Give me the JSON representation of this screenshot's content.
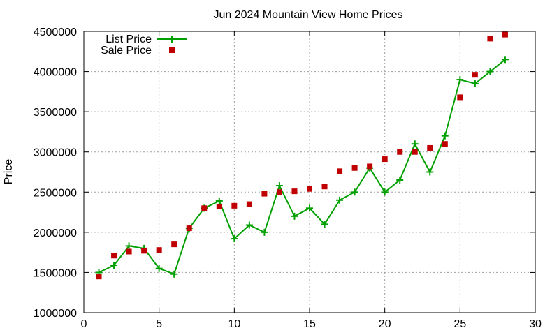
{
  "chart_data": {
    "type": "line",
    "title": "Jun 2024 Mountain View Home Prices",
    "xlabel": "",
    "ylabel": "Price",
    "xlim": [
      0,
      30
    ],
    "ylim": [
      1000000,
      4500000
    ],
    "x_ticks": [
      "0",
      "5",
      "10",
      "15",
      "20",
      "25",
      "30"
    ],
    "y_ticks": [
      "1000000",
      "1500000",
      "2000000",
      "2500000",
      "3000000",
      "3500000",
      "4000000",
      "4500000"
    ],
    "grid": true,
    "legend_position": "top-left",
    "series": [
      {
        "name": "List Price",
        "kind": "line-with-plus-markers",
        "color": "#00a000",
        "points": [
          [
            1,
            1500000
          ],
          [
            2,
            1590000
          ],
          [
            3,
            1830000
          ],
          [
            4,
            1800000
          ],
          [
            5,
            1550000
          ],
          [
            6,
            1480000
          ],
          [
            7,
            2050000
          ],
          [
            8,
            2300000
          ],
          [
            9,
            2390000
          ],
          [
            10,
            1920000
          ],
          [
            11,
            2090000
          ],
          [
            12,
            2000000
          ],
          [
            13,
            2580000
          ],
          [
            14,
            2200000
          ],
          [
            15,
            2300000
          ],
          [
            16,
            2100000
          ],
          [
            17,
            2400000
          ],
          [
            18,
            2500000
          ],
          [
            19,
            2800000
          ],
          [
            20,
            2500000
          ],
          [
            21,
            2650000
          ],
          [
            22,
            3100000
          ],
          [
            23,
            2750000
          ],
          [
            24,
            3200000
          ],
          [
            25,
            3900000
          ],
          [
            26,
            3850000
          ],
          [
            27,
            4000000
          ],
          [
            28,
            4150000
          ]
        ]
      },
      {
        "name": "Sale Price",
        "kind": "square-markers",
        "color": "#c00000",
        "points": [
          [
            1,
            1450000
          ],
          [
            2,
            1710000
          ],
          [
            3,
            1760000
          ],
          [
            4,
            1770000
          ],
          [
            5,
            1780000
          ],
          [
            6,
            1850000
          ],
          [
            7,
            2050000
          ],
          [
            8,
            2300000
          ],
          [
            9,
            2320000
          ],
          [
            10,
            2330000
          ],
          [
            11,
            2350000
          ],
          [
            12,
            2480000
          ],
          [
            13,
            2500000
          ],
          [
            14,
            2510000
          ],
          [
            15,
            2540000
          ],
          [
            16,
            2570000
          ],
          [
            17,
            2760000
          ],
          [
            18,
            2800000
          ],
          [
            19,
            2820000
          ],
          [
            20,
            2910000
          ],
          [
            21,
            3000000
          ],
          [
            22,
            3000000
          ],
          [
            23,
            3050000
          ],
          [
            24,
            3100000
          ],
          [
            25,
            3680000
          ],
          [
            26,
            3960000
          ],
          [
            27,
            4410000
          ],
          [
            28,
            4460000
          ]
        ]
      }
    ]
  }
}
